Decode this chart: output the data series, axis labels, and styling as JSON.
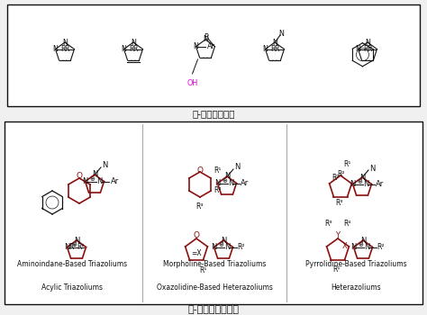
{
  "title_top": "氮-杂环卡宾配体",
  "title_bottom": "氮-杂环卡宾催化剂",
  "bg_color": "#f0f0f0",
  "box_color": "#333333",
  "dark_red": "#8B1010",
  "magenta": "#DD00DD",
  "black": "#111111",
  "gray": "#aaaaaa",
  "label1": "Aminoindane-Based Triazoliums",
  "label2": "Morpholine-Based Triazoliums",
  "label3": "Pyrrolidine-Based Triazoliums",
  "label4": "Acylic Triazoliums",
  "label5": "Oxazolidine-Based Heterazoliums",
  "label6": "Heterazoliums"
}
